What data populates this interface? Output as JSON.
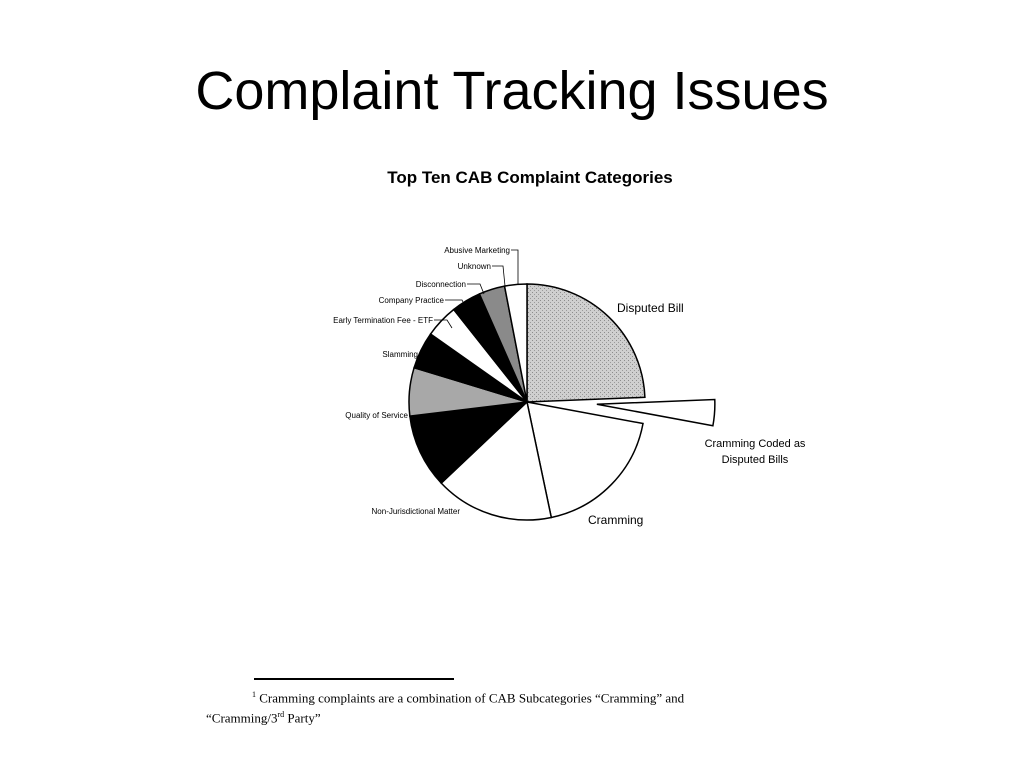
{
  "slide": {
    "title": "Complaint Tracking Issues"
  },
  "chart_data": {
    "type": "pie",
    "title": "Top Ten CAB Complaint Categories",
    "slices": [
      {
        "label": "Disputed Bill",
        "value": 24.0,
        "fill": "#c4c4c4",
        "exploded": false
      },
      {
        "label": "Cramming Coded as Disputed Bills",
        "label_lines": [
          "Cramming Coded as",
          "Disputed Bills"
        ],
        "value": 3.5,
        "fill": "#ffffff",
        "exploded": true
      },
      {
        "label": "Cramming",
        "value": 18.5,
        "fill": "#ffffff",
        "exploded": false
      },
      {
        "label": "Non-Jurisdictional Matter",
        "value": 16.0,
        "fill": "#ffffff",
        "exploded": false
      },
      {
        "label": "Quality of Service",
        "value": 10.0,
        "fill": "#000000",
        "exploded": false
      },
      {
        "label": "Slamming",
        "value": 6.5,
        "fill": "#a8a8a8",
        "exploded": false
      },
      {
        "label": "Early Termination Fee - ETF",
        "value": 5.0,
        "fill": "#000000",
        "exploded": false
      },
      {
        "label": "Company Practice",
        "value": 4.5,
        "fill": "#ffffff",
        "exploded": false
      },
      {
        "label": "Disconnection",
        "value": 4.0,
        "fill": "#000000",
        "exploded": false
      },
      {
        "label": "Unknown",
        "value": 3.5,
        "fill": "#8a8a8a",
        "exploded": false
      },
      {
        "label": "Abusive Marketing",
        "value": 3.0,
        "fill": "#ffffff",
        "exploded": false
      }
    ],
    "legend": "none"
  },
  "footnote": {
    "marker": "1",
    "line1": "Cramming complaints are a combination of CAB Subcategories “Cramming” and",
    "line2_pre": "“Cramming/3",
    "line2_sup": "rd",
    "line2_post": " Party”"
  }
}
